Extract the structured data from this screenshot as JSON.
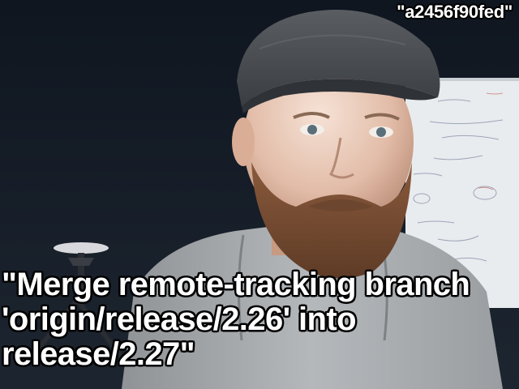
{
  "overlay": {
    "commit_hash": "\"a2456f90fed\"",
    "message_lines": [
      "\"Merge remote-tracking branch",
      "'origin/release/2.26' into",
      "release/2.27\""
    ]
  },
  "colors": {
    "background_wall": "#141a22",
    "caption_fill": "#ffffff",
    "caption_outline": "#000000",
    "hoodie": "#a9adb0",
    "cap": "#4a4d52"
  }
}
